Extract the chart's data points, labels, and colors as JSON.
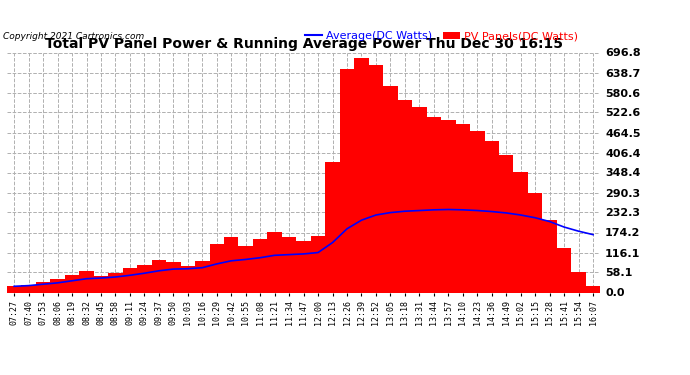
{
  "title": "Total PV Panel Power & Running Average Power Thu Dec 30 16:15",
  "copyright": "Copyright 2021 Cartronics.com",
  "legend_average": "Average(DC Watts)",
  "legend_pv": "PV Panels(DC Watts)",
  "ylabel_right_ticks": [
    0.0,
    58.1,
    116.1,
    174.2,
    232.3,
    290.3,
    348.4,
    406.4,
    464.5,
    522.6,
    580.6,
    638.7,
    696.8
  ],
  "ytop": 696.8,
  "ybottom": 0.0,
  "background_color": "#ffffff",
  "plot_background": "#ffffff",
  "bar_color": "#ff0000",
  "average_color": "#0000ff",
  "grid_color": "#b0b0b0",
  "title_color": "#000000",
  "copyright_color": "#000000",
  "legend_avg_color": "#0000ff",
  "legend_pv_color": "#ff0000",
  "x_labels": [
    "07:27",
    "07:40",
    "07:53",
    "08:06",
    "08:19",
    "08:32",
    "08:45",
    "08:58",
    "09:11",
    "09:24",
    "09:37",
    "09:50",
    "10:03",
    "10:16",
    "10:29",
    "10:42",
    "10:55",
    "11:08",
    "11:21",
    "11:34",
    "11:47",
    "12:00",
    "12:13",
    "12:26",
    "12:39",
    "12:52",
    "13:05",
    "13:18",
    "13:31",
    "13:44",
    "13:57",
    "14:10",
    "14:23",
    "14:36",
    "14:49",
    "15:02",
    "15:15",
    "15:28",
    "15:41",
    "15:54",
    "16:07"
  ],
  "pv_values": [
    18,
    22,
    30,
    38,
    50,
    62,
    48,
    58,
    72,
    80,
    95,
    88,
    78,
    92,
    140,
    160,
    135,
    155,
    175,
    160,
    150,
    165,
    380,
    650,
    680,
    660,
    600,
    560,
    540,
    510,
    500,
    490,
    470,
    440,
    400,
    350,
    290,
    210,
    130,
    60,
    20
  ],
  "avg_values": [
    18,
    20,
    24,
    28,
    34,
    40,
    42,
    45,
    50,
    56,
    63,
    68,
    69,
    72,
    83,
    92,
    96,
    101,
    108,
    110,
    112,
    116,
    145,
    185,
    210,
    225,
    232,
    236,
    238,
    240,
    241,
    240,
    238,
    235,
    231,
    225,
    217,
    206,
    190,
    178,
    168
  ]
}
